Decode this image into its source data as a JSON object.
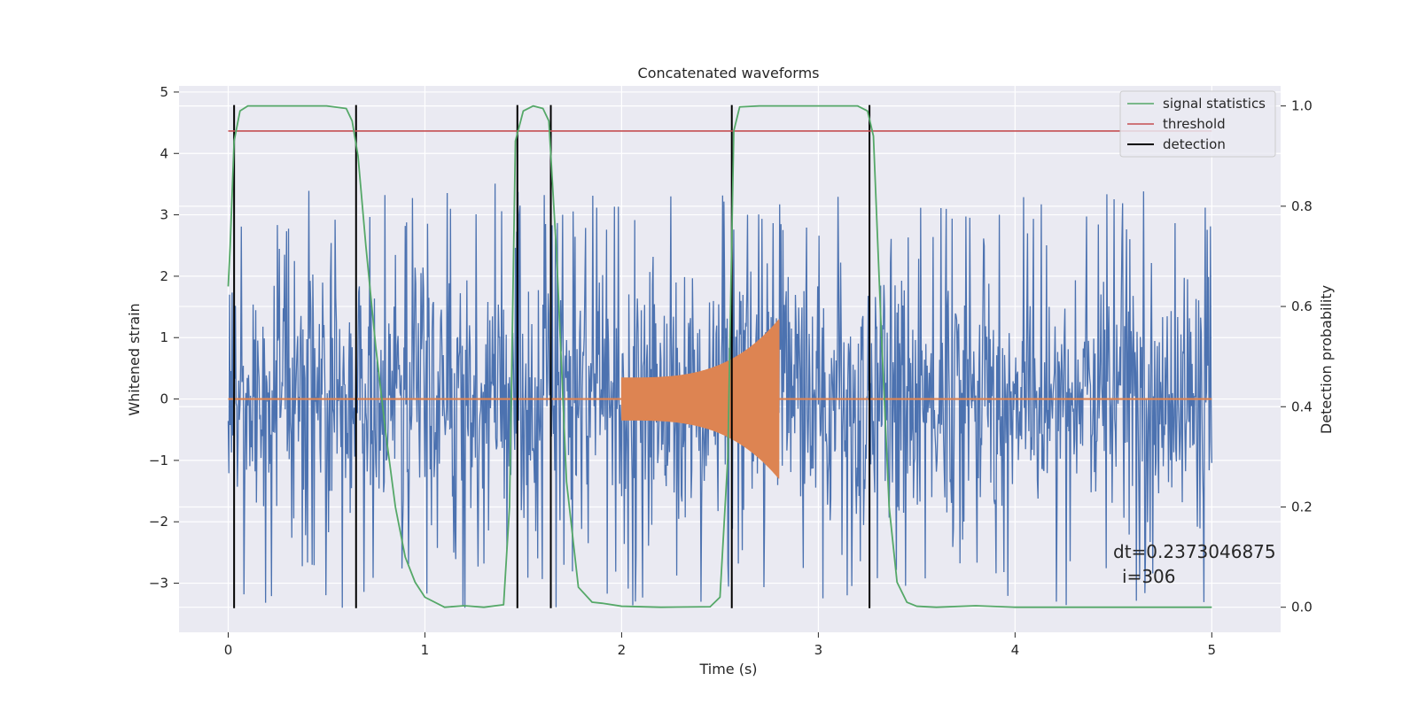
{
  "chart_data": {
    "type": "line",
    "title": "Concatenated waveforms",
    "xlabel": "Time (s)",
    "ylabel": "Whitened strain",
    "y2label": "Detection probability",
    "xlim": [
      -0.25,
      5.35
    ],
    "ylim": [
      -3.8,
      5.1
    ],
    "y2lim": [
      -0.05,
      1.04
    ],
    "xticks": [
      0,
      1,
      2,
      3,
      4,
      5
    ],
    "yticks": [
      5,
      4,
      3,
      2,
      1,
      0,
      -1,
      -2,
      -3
    ],
    "y2ticks": [
      1.0,
      0.8,
      0.6,
      0.4,
      0.2,
      0.0
    ],
    "xtick_labels": [
      "0",
      "1",
      "2",
      "3",
      "4",
      "5"
    ],
    "ytick_labels": [
      "5",
      "4",
      "3",
      "2",
      "1",
      "0",
      "−1",
      "−2",
      "−3"
    ],
    "y2tick_labels": [
      "1.0",
      "0.8",
      "0.6",
      "0.4",
      "0.2",
      "0.0"
    ],
    "grid": true,
    "legend_position": "top-right",
    "legend": [
      {
        "label": "signal statistics",
        "color": "#55a868"
      },
      {
        "label": "threshold",
        "color": "#c44e52"
      },
      {
        "label": "detection",
        "color": "#000000"
      }
    ],
    "colors": {
      "strain": "#4c72b0",
      "template": "#dd8452",
      "signal_statistics": "#55a868",
      "threshold": "#c44e52",
      "detection": "#000000",
      "axes_background": "#eaeaf2",
      "grid": "#ffffff"
    },
    "strain": {
      "x_range": [
        0,
        5
      ],
      "envelope_core": 1.4,
      "envelope_peak_typical": 2.6,
      "max": 4.7,
      "min": -3.4
    },
    "template": {
      "x_start": 2.0,
      "x_end": 2.8,
      "amplitude_start": 0.35,
      "amplitude_end": 1.3
    },
    "signal_statistics": {
      "x": [
        0.0,
        0.01,
        0.03,
        0.06,
        0.1,
        0.15,
        0.3,
        0.5,
        0.6,
        0.63,
        0.66,
        0.7,
        0.75,
        0.8,
        0.85,
        0.9,
        0.95,
        1.0,
        1.1,
        1.2,
        1.3,
        1.4,
        1.43,
        1.46,
        1.5,
        1.55,
        1.6,
        1.63,
        1.67,
        1.72,
        1.78,
        1.85,
        1.9,
        2.0,
        2.2,
        2.45,
        2.5,
        2.54,
        2.57,
        2.6,
        2.7,
        2.9,
        3.1,
        3.2,
        3.25,
        3.28,
        3.32,
        3.36,
        3.4,
        3.45,
        3.5,
        3.6,
        3.8,
        4.0,
        4.5,
        5.0
      ],
      "y": [
        0.64,
        0.72,
        0.93,
        0.99,
        1.0,
        1.0,
        1.0,
        1.0,
        0.995,
        0.97,
        0.9,
        0.72,
        0.52,
        0.35,
        0.2,
        0.1,
        0.05,
        0.02,
        0.0,
        0.003,
        0.0,
        0.005,
        0.2,
        0.93,
        0.99,
        1.0,
        0.995,
        0.97,
        0.7,
        0.25,
        0.04,
        0.01,
        0.008,
        0.002,
        0.0,
        0.001,
        0.02,
        0.3,
        0.95,
        0.998,
        1.0,
        1.0,
        1.0,
        1.0,
        0.99,
        0.94,
        0.55,
        0.2,
        0.05,
        0.01,
        0.002,
        0.0,
        0.003,
        0.0,
        0.0,
        0.0
      ]
    },
    "threshold": {
      "value": 0.95,
      "x_range": [
        0,
        5
      ]
    },
    "detections": [
      0.03,
      0.65,
      1.47,
      1.64,
      2.56,
      3.26
    ],
    "annotations": {
      "dt": "dt=0.2373046875",
      "i": "i=306"
    }
  }
}
